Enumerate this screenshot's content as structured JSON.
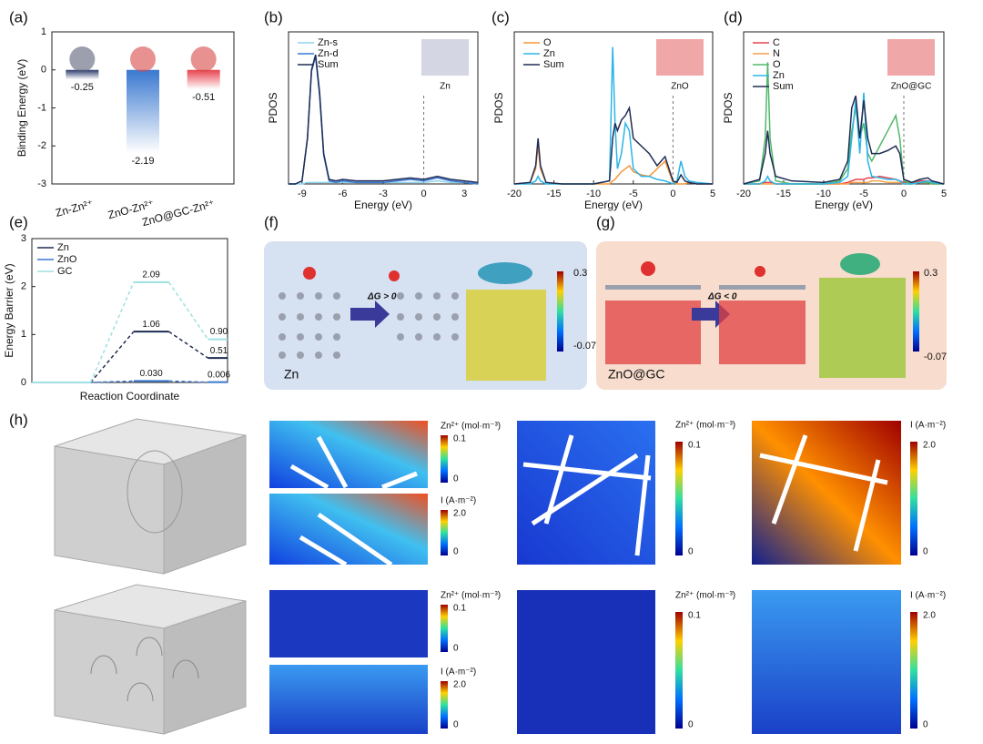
{
  "panels": {
    "labels": [
      "(a)",
      "(b)",
      "(c)",
      "(d)",
      "(e)",
      "(f)",
      "(g)",
      "(h)"
    ]
  },
  "chart_data": [
    {
      "type": "bar",
      "ylabel": "Binding Energy (eV)",
      "categories": [
        "Zn-Zn²⁺",
        "ZnO-Zn²⁺",
        "ZnO@GC-Zn²⁺"
      ],
      "values": [
        -0.25,
        -2.19,
        -0.51
      ],
      "colors": [
        "#2a3a6b",
        "#3a78d0",
        "#e8424e"
      ],
      "ylim": [
        -3,
        1
      ],
      "yticks": [
        -3,
        -2,
        -1,
        0,
        1
      ]
    },
    {
      "type": "line",
      "xlabel": "Energy (eV)",
      "ylabel": "PDOS",
      "annotation": "Zn",
      "x": [
        -10,
        -9.5,
        -9,
        -8.6,
        -8.3,
        -8,
        -7.7,
        -7.4,
        -7,
        -6.5,
        -6,
        -5,
        -4,
        -3,
        -2,
        -1,
        0,
        1,
        2,
        3,
        4
      ],
      "series": [
        {
          "name": "Zn-s",
          "color": "#8fd3ec",
          "values": [
            0,
            0,
            0,
            0.01,
            0.01,
            0.01,
            0.01,
            0.01,
            0.01,
            0.01,
            0.01,
            0.01,
            0.01,
            0.01,
            0.01,
            0.01,
            0.01,
            0.02,
            0.01,
            0.01,
            0
          ]
        },
        {
          "name": "Zn-d",
          "color": "#3a78d0",
          "values": [
            0,
            0,
            0.02,
            0.3,
            0.74,
            0.84,
            0.58,
            0.19,
            0.02,
            0.01,
            0.02,
            0.01,
            0.01,
            0.01,
            0.02,
            0.03,
            0.02,
            0.04,
            0.02,
            0.01,
            0
          ]
        },
        {
          "name": "Sum",
          "color": "#1f2d55",
          "values": [
            0,
            0,
            0.02,
            0.3,
            0.75,
            0.85,
            0.6,
            0.2,
            0.03,
            0.02,
            0.03,
            0.02,
            0.02,
            0.02,
            0.03,
            0.04,
            0.03,
            0.05,
            0.03,
            0.02,
            0.01
          ]
        }
      ],
      "xlim": [
        -10,
        4
      ],
      "xticks": [
        -9,
        -6,
        -3,
        0,
        3
      ],
      "ylim": [
        0,
        1
      ]
    },
    {
      "type": "line",
      "xlabel": "Energy (eV)",
      "ylabel": "PDOS",
      "annotation": "ZnO",
      "x": [
        -20,
        -18,
        -17.3,
        -17,
        -16.7,
        -16,
        -14,
        -10,
        -8,
        -7.6,
        -7.3,
        -7,
        -6.5,
        -6,
        -5.5,
        -5,
        -4,
        -3,
        -2,
        -1,
        0,
        0.5,
        1,
        1.5,
        2,
        3,
        5
      ],
      "series": [
        {
          "name": "O",
          "color": "#f5973a",
          "values": [
            0,
            0.01,
            0.1,
            0.25,
            0.1,
            0.01,
            0,
            0,
            0,
            0.02,
            0.03,
            0.05,
            0.08,
            0.1,
            0.12,
            0.08,
            0.06,
            0.05,
            0.1,
            0.15,
            0.01,
            0,
            0,
            0,
            0.01,
            0,
            0
          ]
        },
        {
          "name": "Zn",
          "color": "#2bb5e6",
          "values": [
            0,
            0,
            0.02,
            0.05,
            0.02,
            0,
            0,
            0,
            0.02,
            0.9,
            0.4,
            0.1,
            0.2,
            0.4,
            0.35,
            0.1,
            0.05,
            0.05,
            0.03,
            0.02,
            0,
            0.02,
            0.15,
            0.05,
            0.02,
            0.01,
            0
          ]
        },
        {
          "name": "Sum",
          "color": "#1f2d55",
          "values": [
            0,
            0.01,
            0.12,
            0.3,
            0.12,
            0.01,
            0,
            0,
            0.02,
            0.3,
            0.4,
            0.35,
            0.42,
            0.45,
            0.5,
            0.3,
            0.25,
            0.2,
            0.12,
            0.18,
            0.02,
            0.01,
            0.06,
            0.02,
            0.01,
            0,
            0
          ]
        }
      ],
      "xlim": [
        -20,
        5
      ],
      "xticks": [
        -20,
        -15,
        -10,
        -5,
        0,
        5
      ],
      "ylim": [
        0,
        1
      ]
    },
    {
      "type": "line",
      "xlabel": "Energy (eV)",
      "ylabel": "PDOS",
      "annotation": "ZnO@GC",
      "x": [
        -20,
        -18,
        -17.3,
        -17,
        -16.7,
        -16,
        -14,
        -10,
        -8,
        -7,
        -6.5,
        -6,
        -5.5,
        -5,
        -4.5,
        -4,
        -3,
        -2,
        -1,
        -0.5,
        0,
        1,
        2,
        3,
        3.5,
        5
      ],
      "series": [
        {
          "name": "C",
          "color": "#e8424e",
          "values": [
            0,
            0,
            0.01,
            0.01,
            0.01,
            0,
            0,
            0,
            0,
            0.01,
            0.02,
            0.03,
            0.03,
            0.03,
            0.04,
            0.04,
            0.05,
            0.04,
            0.03,
            0.02,
            0.01,
            0.01,
            0.02,
            0.02,
            0.01,
            0
          ]
        },
        {
          "name": "N",
          "color": "#f5a04a",
          "values": [
            0,
            0,
            0,
            0,
            0,
            0,
            0,
            0,
            0,
            0,
            0.01,
            0.01,
            0.01,
            0.01,
            0.01,
            0.02,
            0.02,
            0.01,
            0.01,
            0.01,
            0,
            0,
            0.01,
            0.01,
            0,
            0
          ]
        },
        {
          "name": "O",
          "color": "#52b86b",
          "values": [
            0,
            0.02,
            0.3,
            0.8,
            0.3,
            0.02,
            0,
            0,
            0.02,
            0.1,
            0.35,
            0.5,
            0.3,
            0.4,
            0.2,
            0.15,
            0.25,
            0.35,
            0.45,
            0.3,
            0.02,
            0,
            0.01,
            0.01,
            0,
            0
          ]
        },
        {
          "name": "Zn",
          "color": "#2bb5e6",
          "values": [
            0,
            0,
            0.02,
            0.05,
            0.02,
            0,
            0,
            0,
            0.01,
            0.05,
            0.3,
            0.55,
            0.2,
            0.6,
            0.15,
            0.05,
            0.04,
            0.03,
            0.03,
            0.02,
            0,
            0,
            0.01,
            0.02,
            0.01,
            0
          ]
        },
        {
          "name": "Sum",
          "color": "#1f2d55",
          "values": [
            0,
            0.03,
            0.2,
            0.35,
            0.2,
            0.05,
            0.02,
            0.01,
            0.03,
            0.15,
            0.5,
            0.58,
            0.3,
            0.55,
            0.3,
            0.2,
            0.2,
            0.22,
            0.25,
            0.2,
            0.03,
            0.01,
            0.03,
            0.04,
            0.02,
            0
          ]
        }
      ],
      "xlim": [
        -20,
        5
      ],
      "xticks": [
        -20,
        -15,
        -10,
        -5,
        0,
        5
      ],
      "ylim": [
        0,
        1
      ]
    },
    {
      "type": "energy",
      "xlabel": "Reaction Coordinate",
      "ylabel": "Energy Barrier (eV)",
      "series": [
        {
          "name": "Zn",
          "color": "#1f2d55",
          "values": [
            0,
            1.06,
            0.51
          ],
          "value_labels": [
            null,
            "1.06",
            "0.51"
          ]
        },
        {
          "name": "ZnO",
          "color": "#3a78d0",
          "values": [
            0,
            0.03,
            0.006
          ],
          "value_labels": [
            null,
            "0.030",
            "0.006"
          ]
        },
        {
          "name": "GC",
          "color": "#9fe0e0",
          "values": [
            0,
            2.09,
            0.9
          ],
          "value_labels": [
            null,
            "2.09",
            "0.90"
          ]
        }
      ],
      "ylim": [
        0,
        3
      ],
      "yticks": [
        0,
        1,
        2,
        3
      ]
    }
  ],
  "f": {
    "label": "Zn",
    "dg": "ΔG > 0",
    "cbar_max": "0.3",
    "cbar_min": "-0.07"
  },
  "g": {
    "label": "ZnO@GC",
    "dg": "ΔG < 0",
    "cbar_max": "0.3",
    "cbar_min": "-0.07"
  },
  "h": {
    "maps": [
      {
        "title": "Zn²⁺ (mol·m⁻³)",
        "max": "0.1",
        "min": "0"
      },
      {
        "title": "I (A·m⁻²)",
        "max": "2.0",
        "min": "0"
      },
      {
        "title": "Zn²⁺ (mol·m⁻³)",
        "max": "0.1",
        "min": "0"
      },
      {
        "title": "I (A·m⁻²)",
        "max": "2.0",
        "min": "0"
      },
      {
        "title": "Zn²⁺ (mol·m⁻³)",
        "max": "0.1",
        "min": "0"
      },
      {
        "title": "I (A·m⁻²)",
        "max": "2.0",
        "min": "0"
      },
      {
        "title": "Zn²⁺ (mol·m⁻³)",
        "max": "0.1",
        "min": "0"
      },
      {
        "title": "I (A·m⁻²)",
        "max": "2.0",
        "min": "0"
      }
    ]
  }
}
